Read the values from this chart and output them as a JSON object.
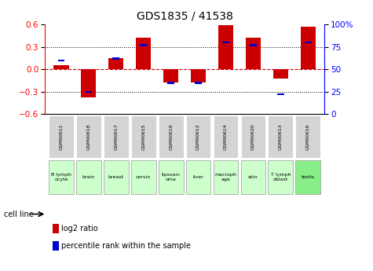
{
  "title": "GDS1835 / 41538",
  "samples": [
    "GSM90611",
    "GSM90618",
    "GSM90617",
    "GSM90615",
    "GSM90619",
    "GSM90612",
    "GSM90614",
    "GSM90620",
    "GSM90613",
    "GSM90616"
  ],
  "cell_lines": [
    "B lymph\nocyte",
    "brain",
    "breast",
    "cervix",
    "liposarc\noma",
    "liver",
    "macroph\nage",
    "skin",
    "T lymph\noblast",
    "testis"
  ],
  "log2_ratio": [
    0.06,
    -0.38,
    0.15,
    0.42,
    -0.175,
    -0.175,
    0.585,
    0.42,
    -0.12,
    0.565
  ],
  "percentile_rank": [
    60,
    25,
    62,
    77,
    35,
    35,
    80,
    77,
    22,
    80
  ],
  "ylim": [
    -0.6,
    0.6
  ],
  "yticks_left": [
    -0.6,
    -0.3,
    0.0,
    0.3,
    0.6
  ],
  "yticks_right": [
    0,
    25,
    50,
    75,
    100
  ],
  "bar_color": "#cc0000",
  "percentile_color": "#0000cc",
  "background_color": "#ffffff",
  "zero_line_color": "#cc0000",
  "bar_width": 0.55,
  "percentile_bar_width": 0.25,
  "percentile_bar_height": 0.025
}
